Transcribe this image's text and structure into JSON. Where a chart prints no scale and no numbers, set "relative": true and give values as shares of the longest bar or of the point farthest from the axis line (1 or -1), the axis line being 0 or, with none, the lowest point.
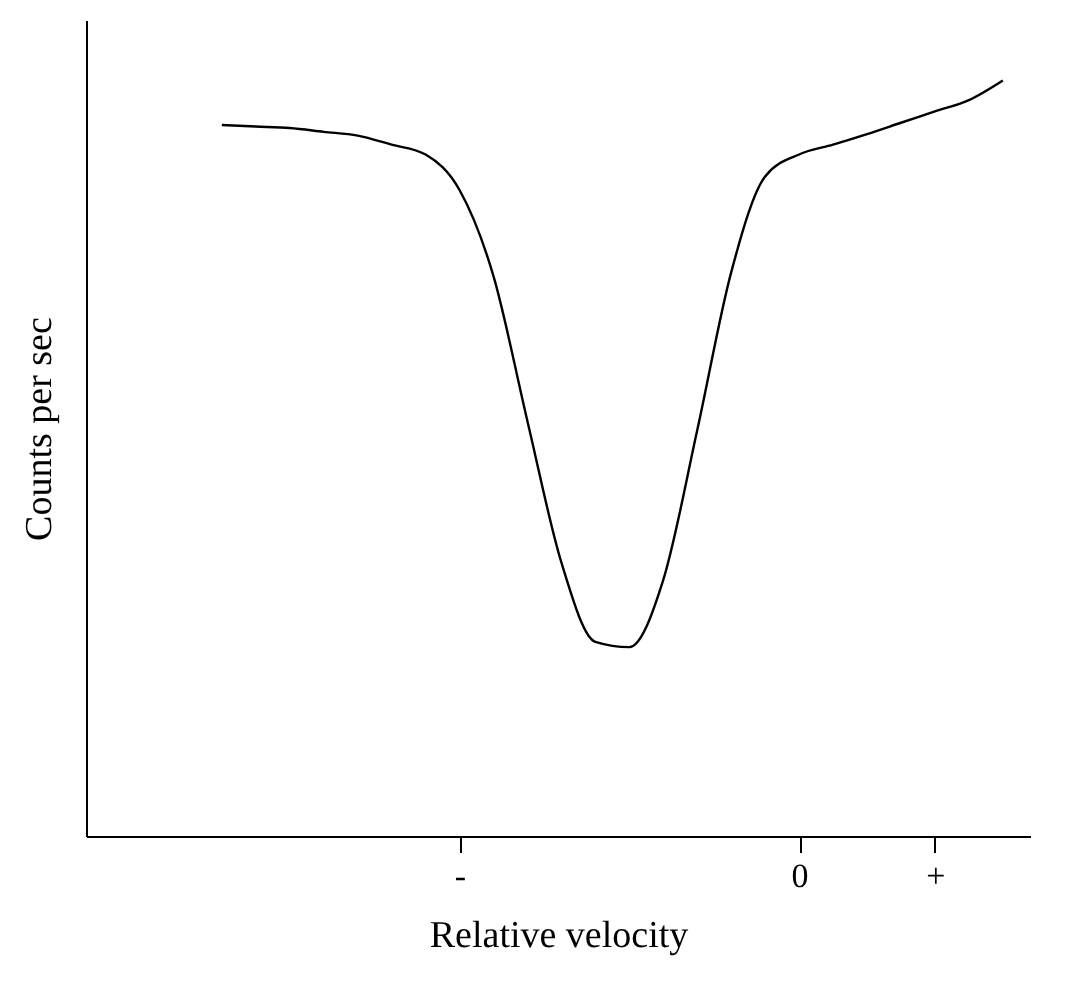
{
  "chart_data": {
    "type": "line",
    "relative": true,
    "xlabel": "Relative  velocity",
    "ylabel": "Counts per sec",
    "categories": [
      null,
      null,
      null,
      null,
      null,
      null,
      null,
      "-",
      null,
      null,
      null,
      null,
      null,
      null,
      null,
      null,
      null,
      "0",
      null,
      null,
      null,
      "+",
      null,
      null
    ],
    "grid": false,
    "marker": "none",
    "line_style": "solid",
    "tick_labels": "x",
    "series": [
      {
        "color": "#000000",
        "values": [
          0.941,
          0.939,
          0.937,
          0.932,
          0.927,
          0.915,
          0.902,
          0.855,
          0.741,
          0.549,
          0.362,
          0.257,
          0.25,
          0.339,
          0.537,
          0.746,
          0.873,
          0.902,
          0.915,
          0.929,
          0.944,
          0.959,
          0.974,
          1.0
        ]
      }
    ]
  }
}
